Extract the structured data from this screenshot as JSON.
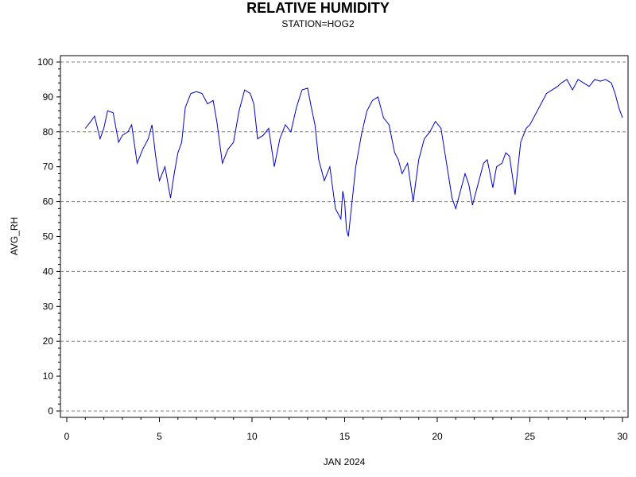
{
  "chart_data": {
    "type": "line",
    "title": "RELATIVE HUMIDITY",
    "subtitle": "STATION=HOG2",
    "xlabel": "JAN 2024",
    "ylabel": "AVG_RH",
    "xlim": [
      0,
      30
    ],
    "ylim": [
      0,
      100
    ],
    "x_ticks": [
      0,
      5,
      10,
      15,
      20,
      25,
      30
    ],
    "y_ticks": [
      0,
      10,
      20,
      30,
      40,
      50,
      60,
      70,
      80,
      90,
      100
    ],
    "grid": {
      "horizontal_dashed_at": [
        0,
        20,
        40,
        60,
        80,
        100
      ]
    },
    "series": [
      {
        "color": "#0000cc",
        "x": [
          1.0,
          1.3,
          1.5,
          1.8,
          2.0,
          2.2,
          2.5,
          2.8,
          3.0,
          3.3,
          3.5,
          3.8,
          4.1,
          4.4,
          4.6,
          4.8,
          5.0,
          5.3,
          5.6,
          5.8,
          6.0,
          6.2,
          6.4,
          6.7,
          7.0,
          7.3,
          7.6,
          7.9,
          8.1,
          8.4,
          8.7,
          9.0,
          9.3,
          9.6,
          9.9,
          10.1,
          10.3,
          10.6,
          10.9,
          11.2,
          11.5,
          11.8,
          12.1,
          12.4,
          12.7,
          13.0,
          13.2,
          13.4,
          13.6,
          13.9,
          14.2,
          14.5,
          14.8,
          14.9,
          15.0,
          15.1,
          15.2,
          15.3,
          15.6,
          15.9,
          16.2,
          16.5,
          16.8,
          17.1,
          17.4,
          17.7,
          17.9,
          18.1,
          18.4,
          18.7,
          19.0,
          19.3,
          19.6,
          19.9,
          20.2,
          20.5,
          20.8,
          21.0,
          21.3,
          21.5,
          21.7,
          21.9,
          22.2,
          22.5,
          22.7,
          23.0,
          23.2,
          23.5,
          23.7,
          23.9,
          24.2,
          24.5,
          24.8,
          25.0,
          25.3,
          25.6,
          25.9,
          26.2,
          26.5,
          26.7,
          27.0,
          27.3,
          27.6,
          27.9,
          28.2,
          28.5,
          28.8,
          29.1,
          29.4,
          29.6,
          29.8,
          30.0
        ],
        "y": [
          81.0,
          83.0,
          84.5,
          78.0,
          81.0,
          86.0,
          85.5,
          77.0,
          79.0,
          80.0,
          82.0,
          71.0,
          75.0,
          78.0,
          82.0,
          73.0,
          66.0,
          70.0,
          61.0,
          68.0,
          74.0,
          77.0,
          87.0,
          91.0,
          91.5,
          91.0,
          88.0,
          89.0,
          83.0,
          71.0,
          75.0,
          77.0,
          86.0,
          92.0,
          91.0,
          88.0,
          78.0,
          79.0,
          81.0,
          70.0,
          78.0,
          82.0,
          80.0,
          87.0,
          92.0,
          92.5,
          87.0,
          82.0,
          72.0,
          66.0,
          70.0,
          58.0,
          55.0,
          63.0,
          60.0,
          52.0,
          50.0,
          55.0,
          70.0,
          79.0,
          86.0,
          89.0,
          90.0,
          84.0,
          82.0,
          74.0,
          72.0,
          68.0,
          71.0,
          60.0,
          72.0,
          78.0,
          80.0,
          83.0,
          81.0,
          71.0,
          61.0,
          58.0,
          64.0,
          68.0,
          65.0,
          59.0,
          65.0,
          71.0,
          72.0,
          64.0,
          70.0,
          71.0,
          74.0,
          73.0,
          62.0,
          77.0,
          81.0,
          82.0,
          85.0,
          88.0,
          91.0,
          92.0,
          93.0,
          94.0,
          95.0,
          92.0,
          95.0,
          94.0,
          93.0,
          95.0,
          94.5,
          95.0,
          94.0,
          91.0,
          87.0,
          84.0
        ]
      }
    ]
  }
}
